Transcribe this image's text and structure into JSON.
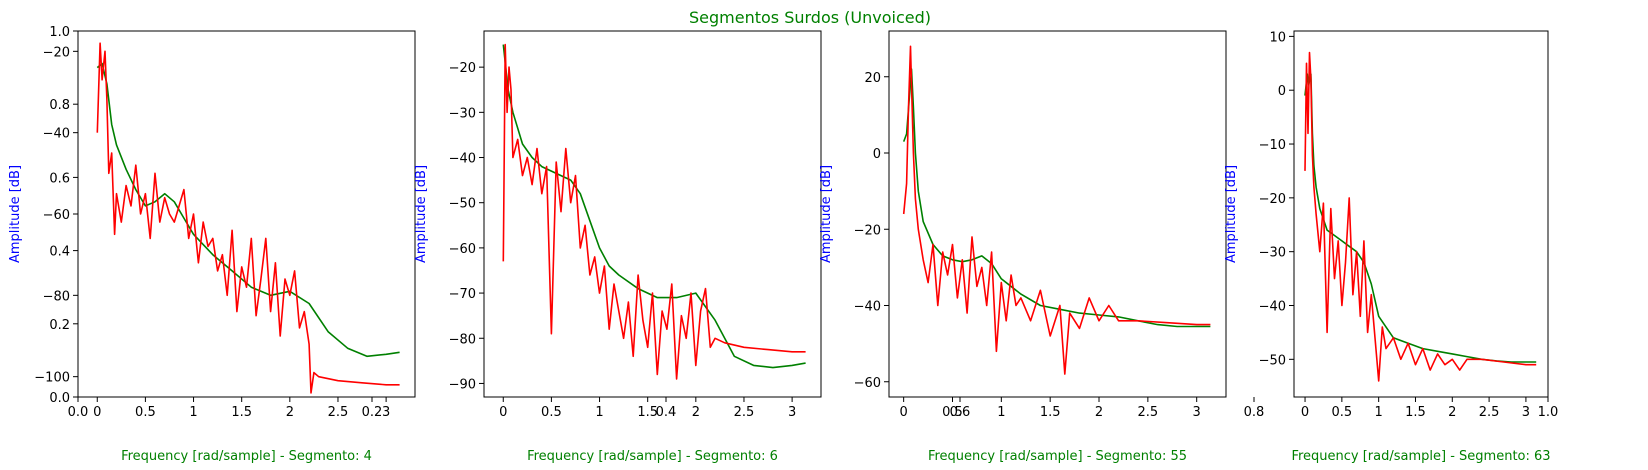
{
  "figure": {
    "title": "Segmentos Surdos (Unvoiced)",
    "background_axis_ticks": {
      "x": [
        "0.0",
        "0.2",
        "0.4",
        "0.6",
        "0.8",
        "1.0"
      ],
      "y": [
        "0.0",
        "0.2",
        "0.4",
        "0.6",
        "0.8",
        "1.0"
      ]
    }
  },
  "colors": {
    "envelope": "#008000",
    "spectrum": "#ff0000",
    "ylabel": "#0000ff",
    "xlabel": "#008000",
    "title": "#008000"
  },
  "chart_data": [
    {
      "type": "line",
      "xlabel": "Frequency [rad/sample] - Segmento: 4",
      "ylabel": "Amplitude [dB]",
      "xlim": [
        -0.2,
        3.3
      ],
      "ylim": [
        -105,
        -15
      ],
      "xticks": [
        0.0,
        0.5,
        1.0,
        1.5,
        2.0,
        2.5,
        3.0
      ],
      "yticks": [
        -100,
        -80,
        -60,
        -40,
        -20
      ],
      "series": [
        {
          "color": "green",
          "x": [
            0,
            0.05,
            0.1,
            0.15,
            0.2,
            0.3,
            0.4,
            0.5,
            0.6,
            0.7,
            0.8,
            0.9,
            1.0,
            1.2,
            1.4,
            1.6,
            1.8,
            2.0,
            2.2,
            2.4,
            2.6,
            2.8,
            3.0,
            3.14
          ],
          "y": [
            -24,
            -23,
            -28,
            -38,
            -43,
            -49,
            -54,
            -58,
            -57,
            -55,
            -57,
            -61,
            -65,
            -70,
            -74,
            -78,
            -80,
            -79,
            -82,
            -89,
            -93,
            -95,
            -94.5,
            -94
          ]
        },
        {
          "color": "red",
          "x": [
            0,
            0.03,
            0.05,
            0.08,
            0.1,
            0.12,
            0.15,
            0.18,
            0.2,
            0.25,
            0.3,
            0.35,
            0.4,
            0.45,
            0.5,
            0.55,
            0.6,
            0.65,
            0.7,
            0.75,
            0.8,
            0.85,
            0.9,
            0.95,
            1.0,
            1.05,
            1.1,
            1.15,
            1.2,
            1.25,
            1.3,
            1.35,
            1.4,
            1.45,
            1.5,
            1.55,
            1.6,
            1.65,
            1.7,
            1.75,
            1.8,
            1.85,
            1.9,
            1.95,
            2.0,
            2.05,
            2.1,
            2.15,
            2.2,
            2.22,
            2.25,
            2.3,
            2.5,
            2.75,
            3.0,
            3.14
          ],
          "y": [
            -40,
            -18,
            -27,
            -20,
            -32,
            -50,
            -45,
            -65,
            -55,
            -62,
            -53,
            -58,
            -48,
            -60,
            -55,
            -66,
            -50,
            -62,
            -56,
            -60,
            -62,
            -58,
            -54,
            -66,
            -60,
            -72,
            -62,
            -68,
            -66,
            -74,
            -70,
            -80,
            -64,
            -84,
            -73,
            -78,
            -66,
            -85,
            -76,
            -66,
            -84,
            -72,
            -90,
            -76,
            -80,
            -74,
            -88,
            -84,
            -92,
            -104,
            -99,
            -100,
            -101,
            -101.5,
            -102,
            -102
          ]
        }
      ]
    },
    {
      "type": "line",
      "xlabel": "Frequency [rad/sample] - Segmento: 6",
      "ylabel": "Amplitude [dB]",
      "xlim": [
        -0.2,
        3.3
      ],
      "ylim": [
        -93,
        -12
      ],
      "xticks": [
        0.0,
        0.5,
        1.0,
        1.5,
        2.0,
        2.5,
        3.0
      ],
      "yticks": [
        -90,
        -80,
        -70,
        -60,
        -50,
        -40,
        -30,
        -20
      ],
      "series": [
        {
          "color": "green",
          "x": [
            0,
            0.05,
            0.1,
            0.2,
            0.3,
            0.4,
            0.5,
            0.6,
            0.7,
            0.8,
            0.9,
            1.0,
            1.1,
            1.2,
            1.4,
            1.6,
            1.8,
            2.0,
            2.2,
            2.4,
            2.6,
            2.8,
            3.0,
            3.14
          ],
          "y": [
            -15,
            -25,
            -30,
            -37,
            -40,
            -42,
            -43,
            -44,
            -45,
            -48,
            -54,
            -60,
            -64,
            -66,
            -69,
            -71,
            -71,
            -70,
            -76,
            -84,
            -86,
            -86.5,
            -86,
            -85.5
          ]
        },
        {
          "color": "red",
          "x": [
            0,
            0.02,
            0.04,
            0.06,
            0.08,
            0.1,
            0.15,
            0.2,
            0.25,
            0.3,
            0.35,
            0.4,
            0.45,
            0.5,
            0.55,
            0.6,
            0.65,
            0.7,
            0.75,
            0.8,
            0.85,
            0.9,
            0.95,
            1.0,
            1.05,
            1.1,
            1.15,
            1.2,
            1.25,
            1.3,
            1.35,
            1.4,
            1.45,
            1.5,
            1.55,
            1.6,
            1.65,
            1.7,
            1.75,
            1.8,
            1.85,
            1.9,
            1.95,
            2.0,
            2.05,
            2.1,
            2.15,
            2.2,
            2.3,
            2.5,
            2.75,
            3.0,
            3.14
          ],
          "y": [
            -63,
            -15,
            -30,
            -20,
            -25,
            -40,
            -36,
            -44,
            -40,
            -46,
            -38,
            -48,
            -42,
            -79,
            -41,
            -52,
            -38,
            -50,
            -44,
            -60,
            -55,
            -66,
            -62,
            -70,
            -64,
            -78,
            -68,
            -74,
            -80,
            -72,
            -84,
            -66,
            -76,
            -82,
            -70,
            -88,
            -74,
            -78,
            -68,
            -89,
            -75,
            -80,
            -70,
            -86,
            -74,
            -69,
            -82,
            -80,
            -81,
            -82,
            -82.5,
            -83,
            -83
          ]
        }
      ]
    },
    {
      "type": "line",
      "xlabel": "Frequency [rad/sample] - Segmento: 55",
      "ylabel": "Amplitude [dB]",
      "xlim": [
        -0.15,
        3.3
      ],
      "ylim": [
        -64,
        32
      ],
      "xticks": [
        0.0,
        0.5,
        1.0,
        1.5,
        2.0,
        2.5,
        3.0
      ],
      "yticks": [
        -60,
        -40,
        -20,
        0,
        20
      ],
      "series": [
        {
          "color": "green",
          "x": [
            0,
            0.03,
            0.06,
            0.08,
            0.1,
            0.12,
            0.15,
            0.2,
            0.3,
            0.4,
            0.5,
            0.6,
            0.7,
            0.8,
            0.9,
            1.0,
            1.2,
            1.4,
            1.6,
            1.8,
            2.0,
            2.2,
            2.4,
            2.6,
            2.8,
            3.0,
            3.14
          ],
          "y": [
            3,
            5,
            15,
            22,
            12,
            0,
            -10,
            -18,
            -24,
            -27,
            -28,
            -28.5,
            -28,
            -27,
            -29,
            -33,
            -37,
            -40,
            -41,
            -42,
            -42.5,
            -43,
            -44,
            -45,
            -45.5,
            -45.5,
            -45.5
          ]
        },
        {
          "color": "red",
          "x": [
            0,
            0.03,
            0.05,
            0.07,
            0.08,
            0.1,
            0.12,
            0.15,
            0.2,
            0.25,
            0.3,
            0.35,
            0.4,
            0.45,
            0.5,
            0.55,
            0.6,
            0.65,
            0.7,
            0.75,
            0.8,
            0.85,
            0.9,
            0.95,
            1.0,
            1.05,
            1.1,
            1.15,
            1.2,
            1.3,
            1.4,
            1.5,
            1.6,
            1.65,
            1.7,
            1.8,
            1.9,
            2.0,
            2.1,
            2.2,
            2.4,
            2.7,
            3.0,
            3.14
          ],
          "y": [
            -16,
            -8,
            12,
            28,
            18,
            0,
            -12,
            -20,
            -28,
            -34,
            -24,
            -40,
            -26,
            -32,
            -24,
            -38,
            -28,
            -42,
            -22,
            -35,
            -30,
            -40,
            -26,
            -52,
            -34,
            -44,
            -32,
            -40,
            -38,
            -44,
            -36,
            -48,
            -40,
            -58,
            -42,
            -46,
            -38,
            -44,
            -40,
            -44,
            -44,
            -44.5,
            -45,
            -45
          ]
        }
      ]
    },
    {
      "type": "line",
      "xlabel": "Frequency [rad/sample] - Segmento: 63",
      "ylabel": "Amplitude [dB]",
      "xlim": [
        -0.15,
        3.3
      ],
      "ylim": [
        -57,
        11
      ],
      "xticks": [
        0.0,
        0.5,
        1.0,
        1.5,
        2.0,
        2.5,
        3.0
      ],
      "yticks": [
        -50,
        -40,
        -30,
        -20,
        -10,
        0,
        10
      ],
      "series": [
        {
          "color": "green",
          "x": [
            0,
            0.03,
            0.05,
            0.08,
            0.1,
            0.12,
            0.15,
            0.2,
            0.3,
            0.4,
            0.5,
            0.6,
            0.7,
            0.8,
            0.9,
            1.0,
            1.2,
            1.4,
            1.6,
            1.8,
            2.0,
            2.2,
            2.4,
            2.6,
            2.8,
            3.0,
            3.14
          ],
          "y": [
            -1,
            3,
            1,
            3,
            -8,
            -14,
            -18,
            -22,
            -26,
            -27,
            -28,
            -29,
            -30,
            -32,
            -36,
            -42,
            -46,
            -47,
            -48,
            -48.5,
            -49,
            -49.5,
            -50,
            -50.3,
            -50.5,
            -50.5,
            -50.5
          ]
        },
        {
          "color": "red",
          "x": [
            0,
            0.02,
            0.04,
            0.06,
            0.08,
            0.1,
            0.12,
            0.15,
            0.2,
            0.25,
            0.3,
            0.35,
            0.4,
            0.45,
            0.5,
            0.55,
            0.6,
            0.65,
            0.7,
            0.75,
            0.8,
            0.85,
            0.9,
            0.95,
            1.0,
            1.05,
            1.1,
            1.2,
            1.3,
            1.4,
            1.5,
            1.6,
            1.7,
            1.8,
            1.9,
            2.0,
            2.1,
            2.2,
            2.4,
            2.7,
            3.0,
            3.14
          ],
          "y": [
            -15,
            5,
            -8,
            7,
            2,
            -12,
            -18,
            -23,
            -30,
            -21,
            -45,
            -22,
            -35,
            -28,
            -40,
            -32,
            -20,
            -38,
            -30,
            -42,
            -28,
            -45,
            -38,
            -46,
            -54,
            -44,
            -48,
            -46,
            -50,
            -47,
            -51,
            -48,
            -52,
            -49,
            -51,
            -50,
            -52,
            -50,
            -50,
            -50.5,
            -51,
            -51
          ]
        }
      ]
    }
  ]
}
